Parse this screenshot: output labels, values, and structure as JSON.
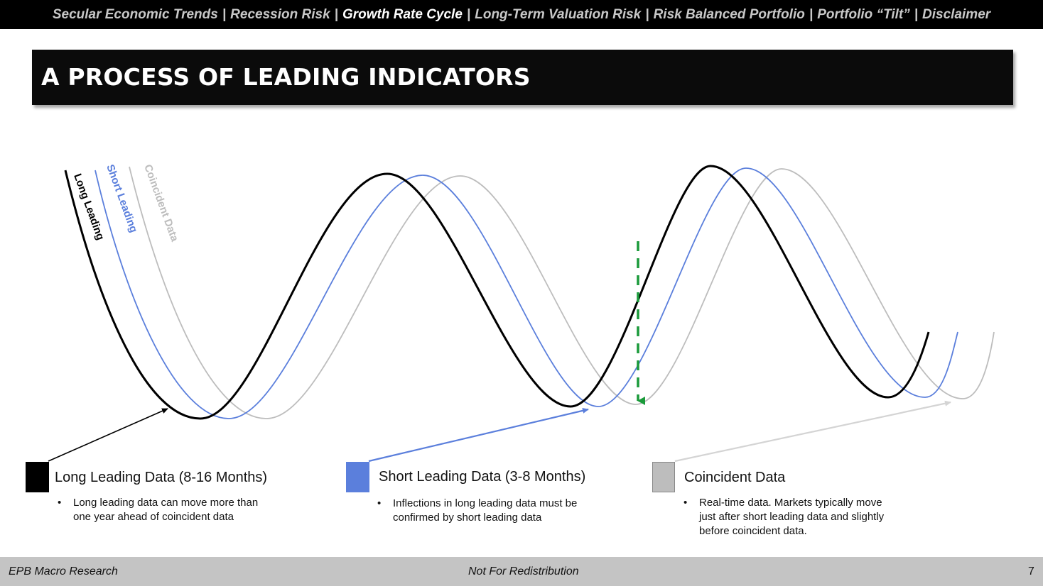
{
  "nav": {
    "items": [
      {
        "label": "Secular Economic Trends",
        "active": false
      },
      {
        "label": "Recession Risk",
        "active": false
      },
      {
        "label": "Growth Rate Cycle",
        "active": true
      },
      {
        "label": "Long-Term Valuation Risk",
        "active": false
      },
      {
        "label": "Risk Balanced Portfolio",
        "active": false
      },
      {
        "label": "Portfolio “Tilt”",
        "active": false
      },
      {
        "label": "Disclaimer",
        "active": false
      }
    ],
    "separator": "|"
  },
  "title": "A PROCESS OF LEADING INDICATORS",
  "curves": {
    "long_label": "Long Leading",
    "short_label": "Short Leading",
    "coincident_label": "Coincident Data",
    "colors": {
      "long": "#000000",
      "short": "#5b7fdc",
      "coincident": "#bdbdbd",
      "marker": "#1a9a3a"
    }
  },
  "legend": [
    {
      "title": "Long Leading Data (8-16 Months)",
      "color": "#000000",
      "bullets": [
        "Long leading data can move more than one year ahead of coincident data"
      ]
    },
    {
      "title": "Short Leading Data (3-8 Months)",
      "color": "#5b7fdc",
      "bullets": [
        "Inflections in long leading data must be confirmed by short leading data"
      ]
    },
    {
      "title": "Coincident Data",
      "color": "#bdbdbd",
      "bullets": [
        "Real-time data. Markets typically move just after short leading data and slightly before coincident data."
      ]
    }
  ],
  "footer": {
    "left": "EPB Macro Research",
    "center": "Not For Redistribution",
    "page": "7"
  }
}
